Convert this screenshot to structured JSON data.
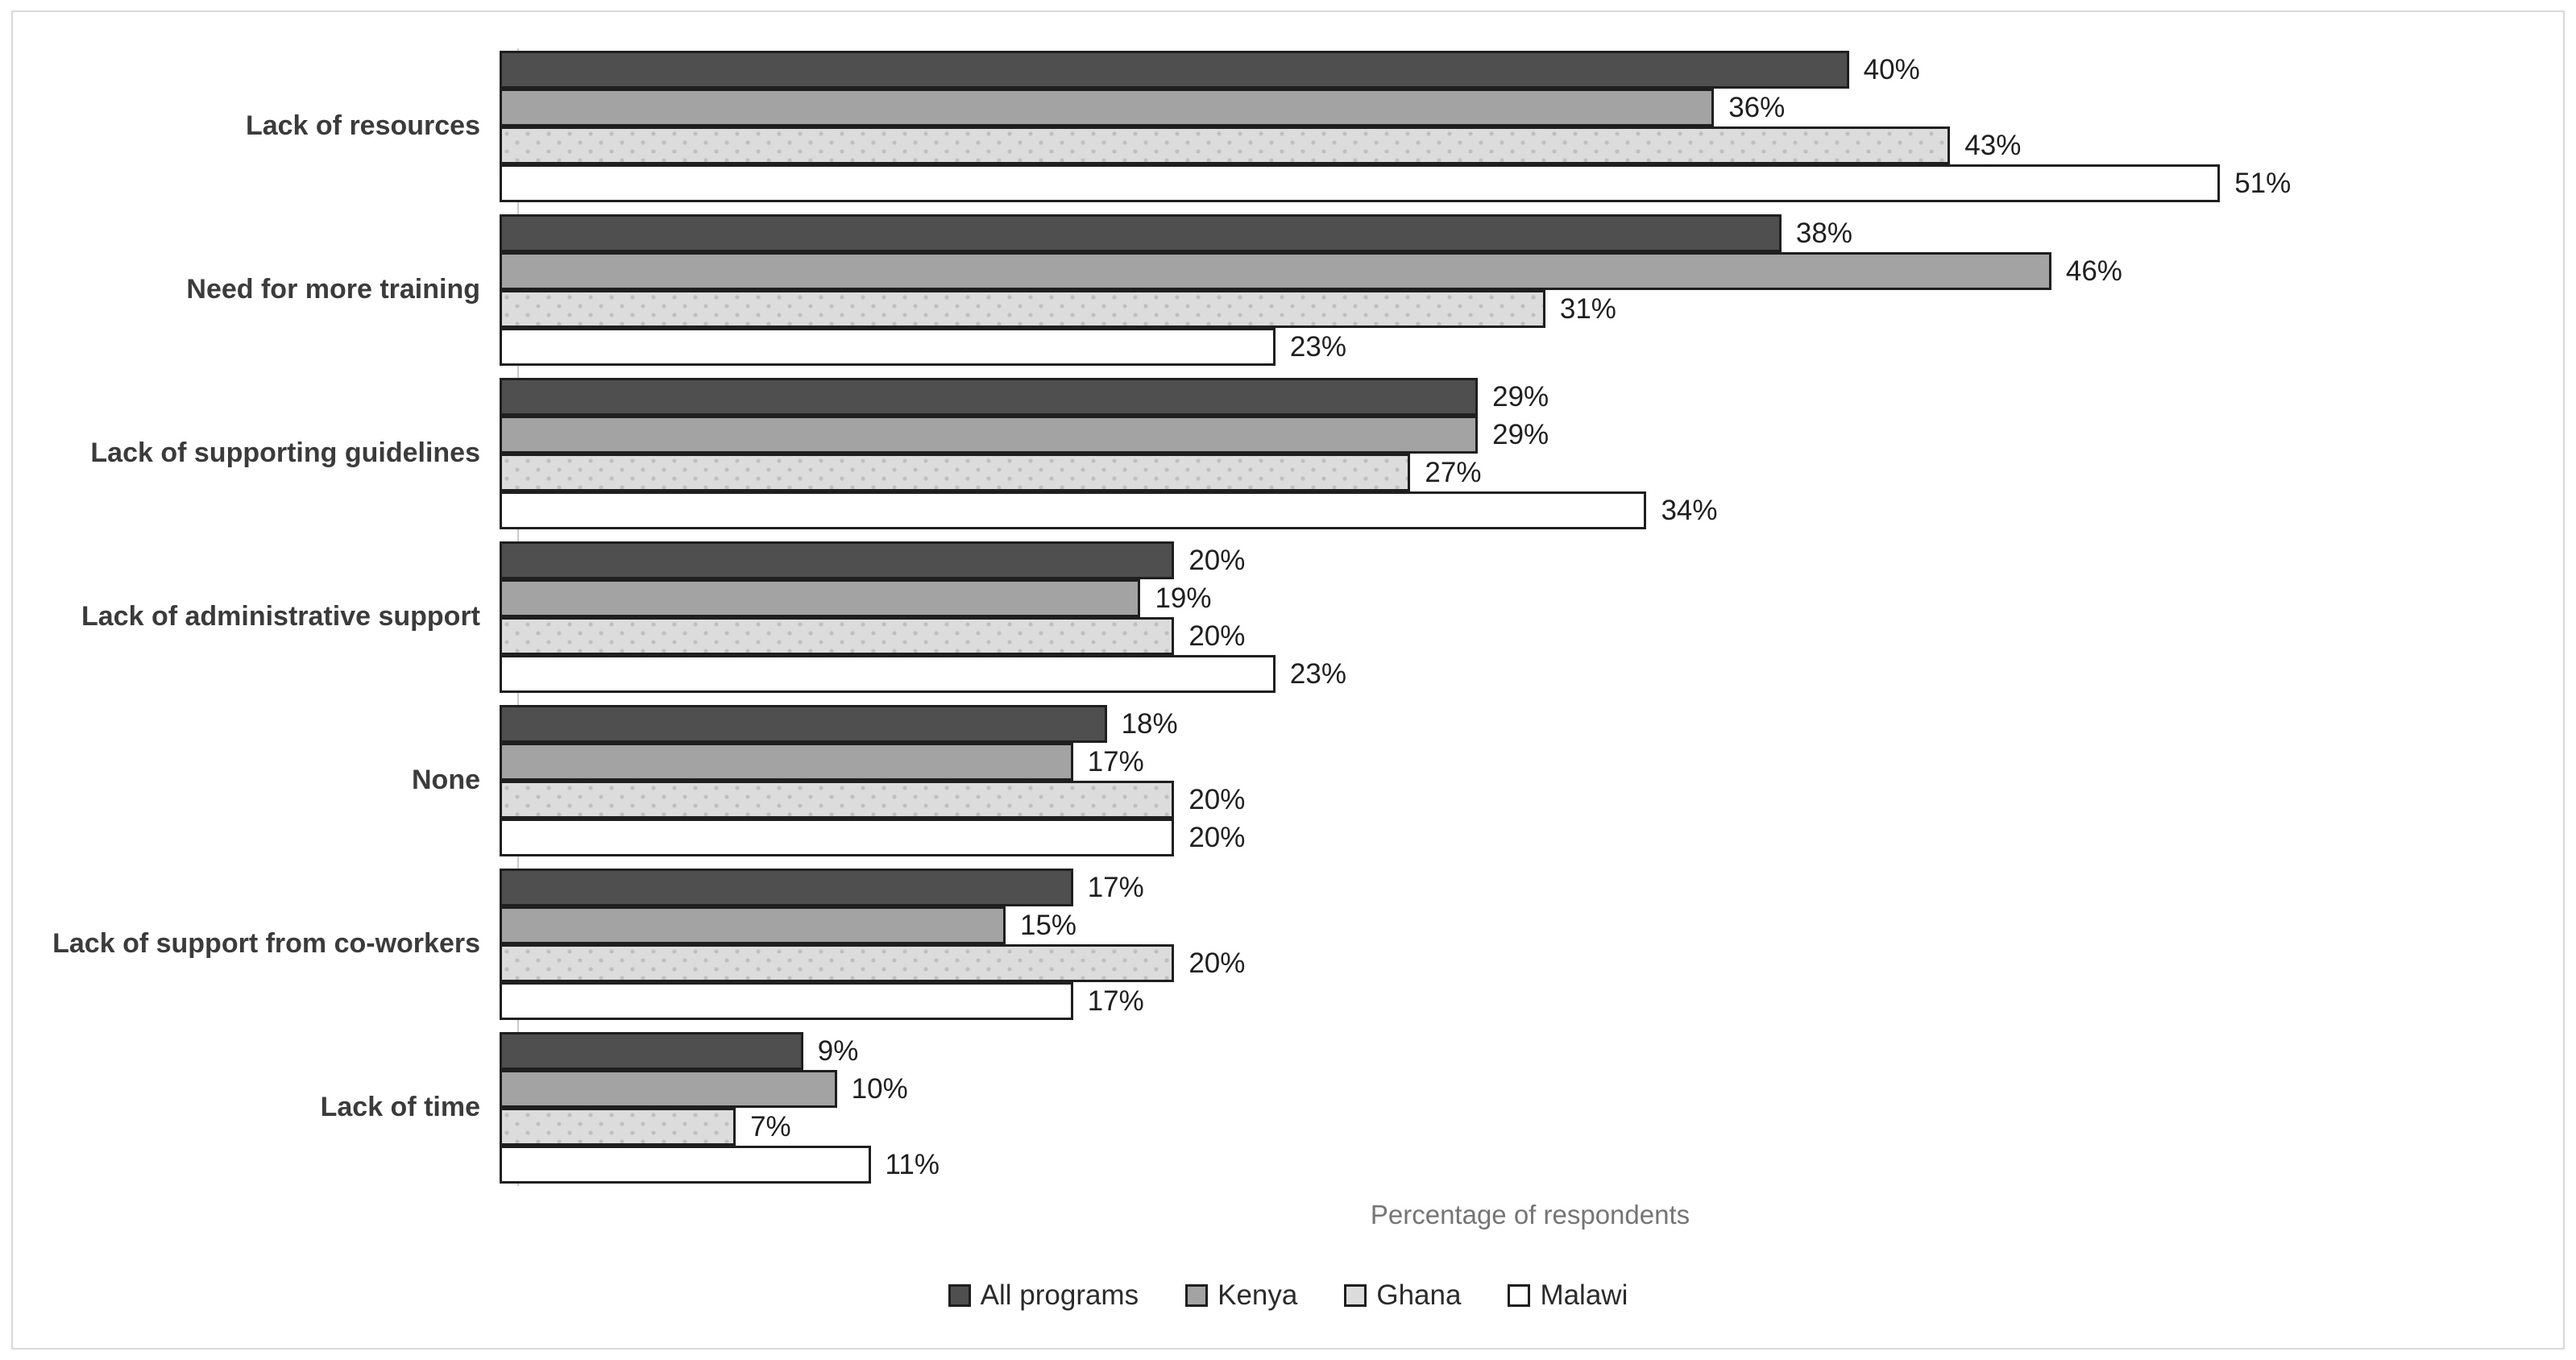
{
  "chart_data": {
    "type": "bar",
    "orientation": "horizontal",
    "title": "",
    "xlabel": "Percentage of respondents",
    "ylabel": "",
    "xlim": [
      0,
      60
    ],
    "grid": false,
    "legend_position": "bottom",
    "data_labels": true,
    "value_suffix": "%",
    "categories": [
      "Lack of resources",
      "Need for more training",
      "Lack of supporting guidelines",
      "Lack of administrative support",
      "None",
      "Lack of support from co-workers",
      "Lack of time"
    ],
    "series": [
      {
        "name": "All programs",
        "color": "#4f4f4f",
        "pattern": "solid",
        "values": [
          40,
          38,
          29,
          20,
          18,
          17,
          9
        ]
      },
      {
        "name": "Kenya",
        "color": "#a3a3a3",
        "pattern": "solid",
        "values": [
          36,
          46,
          29,
          19,
          17,
          15,
          10
        ]
      },
      {
        "name": "Ghana",
        "color": "#dcdcdc",
        "pattern": "dots",
        "values": [
          43,
          31,
          27,
          20,
          20,
          20,
          7
        ]
      },
      {
        "name": "Malawi",
        "color": "#ffffff",
        "pattern": "solid",
        "values": [
          51,
          23,
          34,
          23,
          20,
          17,
          11
        ]
      }
    ]
  },
  "frame": {
    "border_color": "#d9d9d9",
    "background": "#ffffff"
  }
}
